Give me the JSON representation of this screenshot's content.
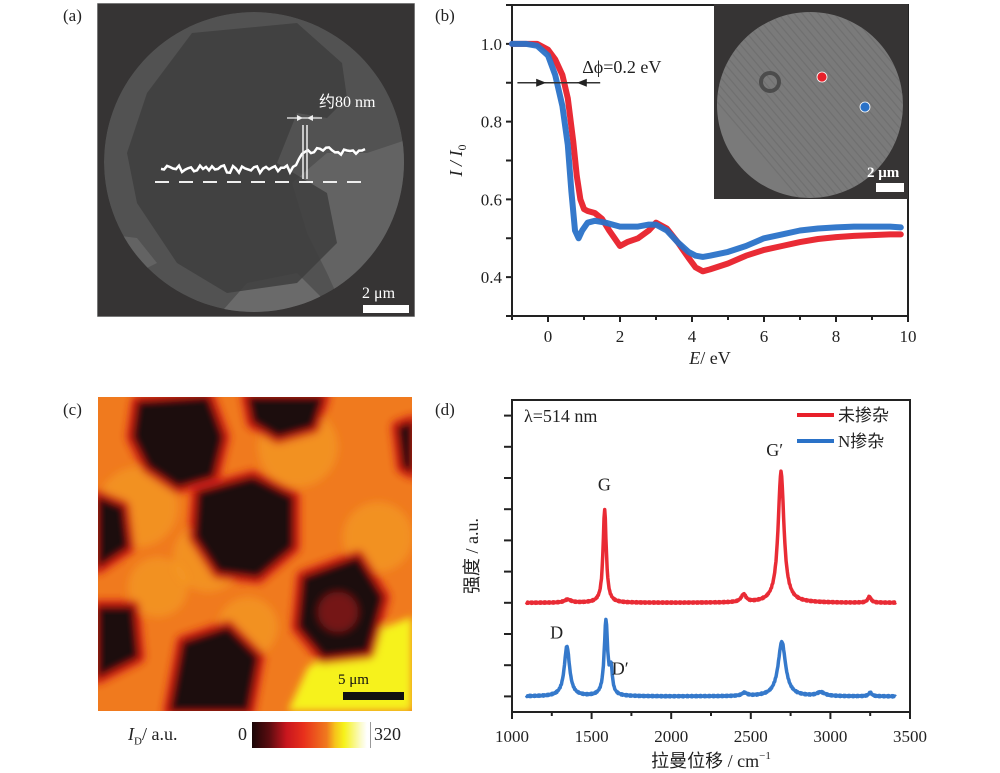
{
  "figure": {
    "panels": [
      {
        "label": "(a)"
      },
      {
        "label": "(b)"
      },
      {
        "label": "(c)"
      },
      {
        "label": "(d)"
      }
    ]
  },
  "panel_a": {
    "type": "micrograph",
    "step_annotation": "约80 nm",
    "scale_bar": "2 μm",
    "colors": {
      "background": "#3a3838",
      "disc": "#4a4a4a",
      "profile": "#ffffff"
    }
  },
  "panel_c": {
    "type": "heatmap-image",
    "scale_bar": "5 μm",
    "colorbar": {
      "label_main": "I",
      "label_sub": "D",
      "label_unit": "/ a.u.",
      "min": "0",
      "max": "320"
    },
    "colors": {
      "low": "#1a0a0a",
      "mid": "#e8301c",
      "high_orange": "#f28a1c",
      "high": "#f6f21a"
    }
  },
  "chart_data": [
    {
      "type": "line",
      "panel": "(b)",
      "title": "",
      "xlabel_var": "E",
      "xlabel_unit": "/ eV",
      "ylabel_var": "I / I",
      "ylabel_sub": "0",
      "xlim": [
        -1,
        10
      ],
      "ylim": [
        0.3,
        1.1
      ],
      "xticks": [
        0,
        2,
        4,
        6,
        8,
        10
      ],
      "yticks": [
        0.4,
        0.6,
        0.8,
        1.0
      ],
      "ytick_labels": [
        "0.4",
        "0.6",
        "0.8",
        "1.0"
      ],
      "annotation": "Δϕ=0.2 eV",
      "annotation_y": 0.9,
      "inset": {
        "scale_bar": "2 μm",
        "markers": [
          {
            "color": "#e8202a"
          },
          {
            "color": "#2a72c8"
          }
        ]
      },
      "series": [
        {
          "name": "red",
          "color": "#e8202a",
          "x": [
            -1,
            -0.6,
            -0.3,
            0,
            0.2,
            0.4,
            0.55,
            0.7,
            0.8,
            0.9,
            1.0,
            1.1,
            1.3,
            1.5,
            1.7,
            2.0,
            2.2,
            2.5,
            2.8,
            3.0,
            3.3,
            3.6,
            3.9,
            4.1,
            4.3,
            4.5,
            5.0,
            5.5,
            6.0,
            6.5,
            7.0,
            7.5,
            8.0,
            8.5,
            9.0,
            9.5,
            9.8
          ],
          "y": [
            1.0,
            1.0,
            1.0,
            0.985,
            0.96,
            0.92,
            0.86,
            0.75,
            0.66,
            0.6,
            0.575,
            0.57,
            0.565,
            0.55,
            0.52,
            0.48,
            0.49,
            0.5,
            0.52,
            0.54,
            0.525,
            0.49,
            0.45,
            0.425,
            0.415,
            0.42,
            0.435,
            0.455,
            0.47,
            0.48,
            0.49,
            0.498,
            0.503,
            0.506,
            0.508,
            0.51,
            0.51
          ]
        },
        {
          "name": "blue",
          "color": "#2a72c8",
          "x": [
            -1,
            -0.6,
            -0.3,
            0,
            0.2,
            0.4,
            0.55,
            0.65,
            0.75,
            0.85,
            0.95,
            1.1,
            1.3,
            1.6,
            2.0,
            2.5,
            2.8,
            3.0,
            3.3,
            3.6,
            3.9,
            4.1,
            4.3,
            4.5,
            5.0,
            5.5,
            6.0,
            6.5,
            7.0,
            7.5,
            8.0,
            8.5,
            9.0,
            9.5,
            9.8
          ],
          "y": [
            1.0,
            1.0,
            0.995,
            0.97,
            0.92,
            0.84,
            0.74,
            0.62,
            0.52,
            0.5,
            0.52,
            0.54,
            0.545,
            0.54,
            0.53,
            0.53,
            0.535,
            0.535,
            0.52,
            0.49,
            0.465,
            0.455,
            0.452,
            0.455,
            0.465,
            0.48,
            0.5,
            0.51,
            0.52,
            0.525,
            0.528,
            0.53,
            0.53,
            0.53,
            0.528
          ]
        }
      ]
    },
    {
      "type": "line",
      "panel": "(d)",
      "title": "",
      "xlabel": "拉曼位移 / cm",
      "xlabel_sup": "−1",
      "ylabel": "强度 / a.u.",
      "xlim": [
        1000,
        3500
      ],
      "ylim": [
        0,
        10
      ],
      "xticks": [
        1000,
        1500,
        2000,
        2500,
        3000,
        3500
      ],
      "annotation": "λ=514 nm",
      "legend_position": "top-right",
      "peak_labels": [
        {
          "text": "G",
          "x": 1580,
          "y": 7.1
        },
        {
          "text": "G′",
          "x": 2650,
          "y": 8.2
        },
        {
          "text": "D",
          "x": 1280,
          "y": 2.35
        },
        {
          "text": "D′",
          "x": 1680,
          "y": 1.2
        }
      ],
      "series": [
        {
          "name": "未掺杂",
          "color": "#e8202a",
          "offset": 3.5,
          "peaks": [
            {
              "center": 1350,
              "height": 0.1,
              "width": 25
            },
            {
              "center": 1582,
              "height": 3.0,
              "width": 12
            },
            {
              "center": 2455,
              "height": 0.25,
              "width": 18
            },
            {
              "center": 2690,
              "height": 4.2,
              "width": 22
            },
            {
              "center": 3245,
              "height": 0.2,
              "width": 12
            }
          ]
        },
        {
          "name": "N掺杂",
          "color": "#2a72c8",
          "offset": 0.5,
          "peaks": [
            {
              "center": 1345,
              "height": 1.6,
              "width": 20
            },
            {
              "center": 1590,
              "height": 2.4,
              "width": 13
            },
            {
              "center": 1622,
              "height": 0.75,
              "width": 10
            },
            {
              "center": 2460,
              "height": 0.1,
              "width": 20
            },
            {
              "center": 2695,
              "height": 1.75,
              "width": 28
            },
            {
              "center": 2940,
              "height": 0.12,
              "width": 30
            },
            {
              "center": 3250,
              "height": 0.12,
              "width": 12
            }
          ]
        }
      ]
    }
  ]
}
